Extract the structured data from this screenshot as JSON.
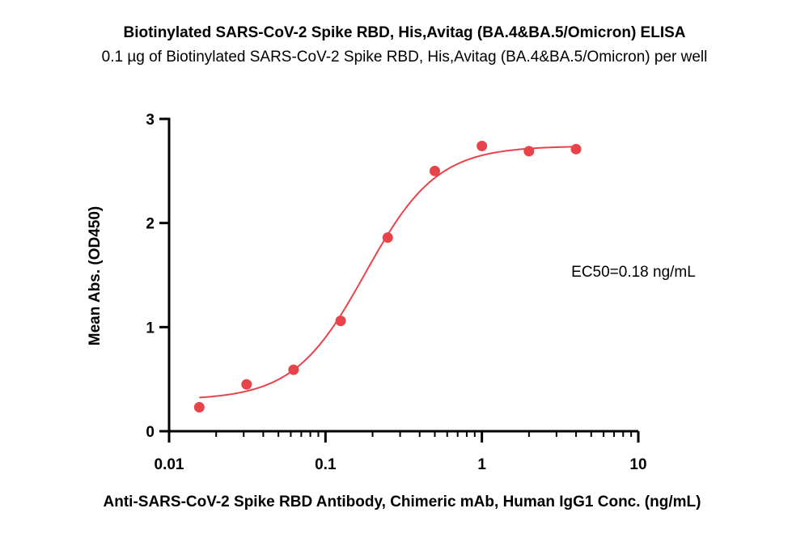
{
  "chart_data": {
    "type": "scatter",
    "title": "Biotinylated SARS-CoV-2 Spike RBD, His,Avitag (BA.4&BA.5/Omicron) ELISA",
    "subtitle": "0.1 µg of Biotinylated SARS-CoV-2 Spike RBD, His,Avitag (BA.4&BA.5/Omicron) per well",
    "xlabel": "Anti-SARS-CoV-2 Spike RBD Antibody, Chimeric mAb, Human IgG1 Conc. (ng/mL)",
    "ylabel": "Mean Abs. (OD450)",
    "xscale": "log",
    "xlim": [
      0.01,
      10
    ],
    "ylim": [
      0,
      3
    ],
    "xticks": [
      0.01,
      0.1,
      1,
      10
    ],
    "xtick_labels": [
      "0.01",
      "0.1",
      "1",
      "10"
    ],
    "yticks": [
      0,
      1,
      2,
      3
    ],
    "ytick_labels": [
      "0",
      "1",
      "2",
      "3"
    ],
    "grid": false,
    "annotation": "EC50=0.18 ng/mL",
    "color": "#e8434a",
    "series": [
      {
        "x": [
          0.0156,
          0.0313,
          0.0625,
          0.125,
          0.25,
          0.5,
          1,
          2,
          4
        ],
        "y": [
          0.23,
          0.45,
          0.59,
          1.06,
          1.86,
          2.5,
          2.74,
          2.69,
          2.71
        ]
      }
    ],
    "fit": {
      "model": "4PL",
      "bottom": 0.3,
      "top": 2.74,
      "ec50": 0.18,
      "hill": 1.9,
      "x_range": [
        0.0156,
        4
      ]
    }
  }
}
